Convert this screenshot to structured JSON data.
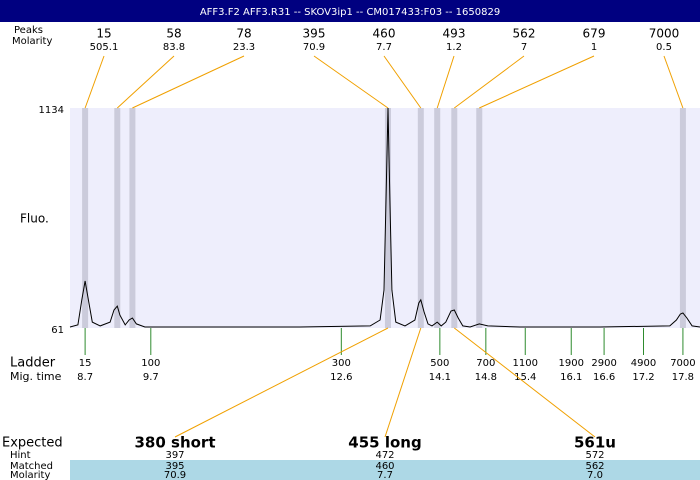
{
  "header": {
    "title": "AFF3.F2  AFF3.R31 -- SKOV3ip1 -- CM017433:F03 -- 1650829"
  },
  "chart_data": {
    "type": "line",
    "ylabel": "Fluo.",
    "xlim": [
      8.47,
      18.06
    ],
    "ylim": [
      61,
      1134
    ],
    "yticks": [
      61,
      1134
    ],
    "x": [
      8.47,
      8.59,
      8.65,
      8.7,
      8.75,
      8.81,
      8.93,
      9.08,
      9.14,
      9.19,
      9.23,
      9.31,
      9.37,
      9.42,
      9.48,
      9.61,
      10.45,
      11.97,
      13.04,
      13.19,
      13.25,
      13.28,
      13.31,
      13.34,
      13.37,
      13.43,
      13.57,
      13.72,
      13.78,
      13.81,
      13.86,
      13.92,
      13.98,
      14.06,
      14.12,
      14.19,
      14.27,
      14.32,
      14.38,
      14.45,
      14.56,
      14.7,
      14.83,
      15.32,
      16.54,
      17.6,
      17.7,
      17.76,
      17.8,
      17.86,
      17.94,
      18.06
    ],
    "values": [
      66,
      76,
      198,
      290,
      198,
      90,
      71,
      90,
      149,
      168,
      124,
      76,
      100,
      110,
      81,
      66,
      66,
      66,
      71,
      100,
      246,
      685,
      1134,
      685,
      246,
      90,
      71,
      100,
      183,
      198,
      139,
      81,
      71,
      90,
      71,
      90,
      144,
      149,
      110,
      71,
      66,
      81,
      71,
      66,
      66,
      71,
      100,
      129,
      134,
      110,
      71,
      66
    ],
    "color": "#000000",
    "background": "#eeeefc",
    "peaks": {
      "label": "Peaks",
      "molarity_label": "Molarity",
      "sizes": [
        15,
        58,
        78,
        395,
        460,
        493,
        562,
        679,
        7000
      ],
      "x": [
        8.7,
        9.19,
        9.42,
        13.31,
        13.81,
        14.06,
        14.32,
        14.7,
        17.8
      ],
      "molarity": [
        505.1,
        83.8,
        23.3,
        70.9,
        7.7,
        1.2,
        7,
        1,
        0.5
      ],
      "band_color": "#cbcbdb",
      "line_color": "#f0a000"
    },
    "ladder": {
      "label": "Ladder",
      "time_label": "Mig. time",
      "sizes": [
        15,
        100,
        300,
        500,
        700,
        1100,
        1900,
        2900,
        4900,
        7000
      ],
      "x": [
        8.7,
        9.7,
        12.6,
        14.1,
        14.8,
        15.4,
        16.1,
        16.6,
        17.2,
        17.8
      ],
      "color": "#2e8b2e"
    }
  },
  "table": {
    "labels": [
      "Expected",
      "Hint",
      "Matched",
      "Molarity"
    ],
    "expected": [
      "380 short",
      "455 long",
      "561u"
    ],
    "hint": [
      397,
      472,
      572
    ],
    "matched": [
      395,
      460,
      562
    ],
    "molarity": [
      "70.9",
      "7.7",
      "7.0"
    ],
    "row_color": "#add8e6"
  }
}
